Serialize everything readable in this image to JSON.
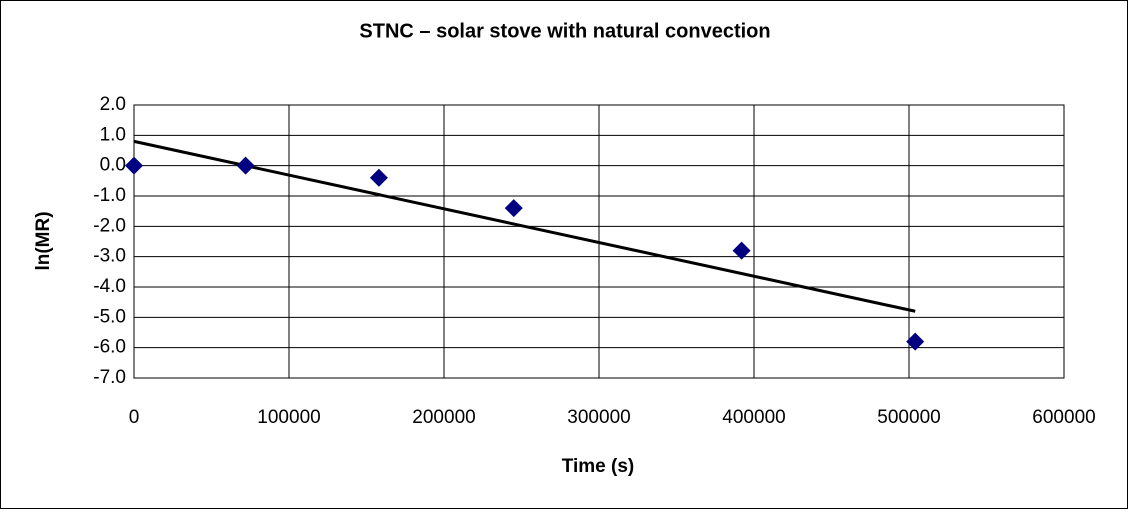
{
  "chart_data": {
    "type": "scatter",
    "title": "STNC – solar stove with natural convection",
    "xlabel": "Time (s)",
    "ylabel": "ln(MR)",
    "x": [
      0,
      72000,
      158000,
      245000,
      392000,
      504000
    ],
    "values": [
      0,
      0,
      -0.4,
      -1.4,
      -2.8,
      -5.8
    ],
    "color": "#000080",
    "trendline": {
      "x": [
        0,
        504000
      ],
      "values": [
        0.8,
        -4.8
      ],
      "color": "#000000"
    },
    "xlim": [
      0,
      600000
    ],
    "xticks": [
      0,
      100000,
      200000,
      300000,
      400000,
      500000,
      600000
    ],
    "ylim": [
      -7,
      2
    ],
    "yticks": [
      {
        "value": 2,
        "label": "2.0"
      },
      {
        "value": 1,
        "label": "1.0"
      },
      {
        "value": 0,
        "label": "0.0"
      },
      {
        "value": -1,
        "label": "-1.0"
      },
      {
        "value": -2,
        "label": "-2.0"
      },
      {
        "value": -3,
        "label": "-3.0"
      },
      {
        "value": -4,
        "label": "-4.0"
      },
      {
        "value": -5,
        "label": "-5.0"
      },
      {
        "value": -6,
        "label": "-6.0"
      },
      {
        "value": -7,
        "label": "-7.0"
      }
    ],
    "grid": true
  }
}
